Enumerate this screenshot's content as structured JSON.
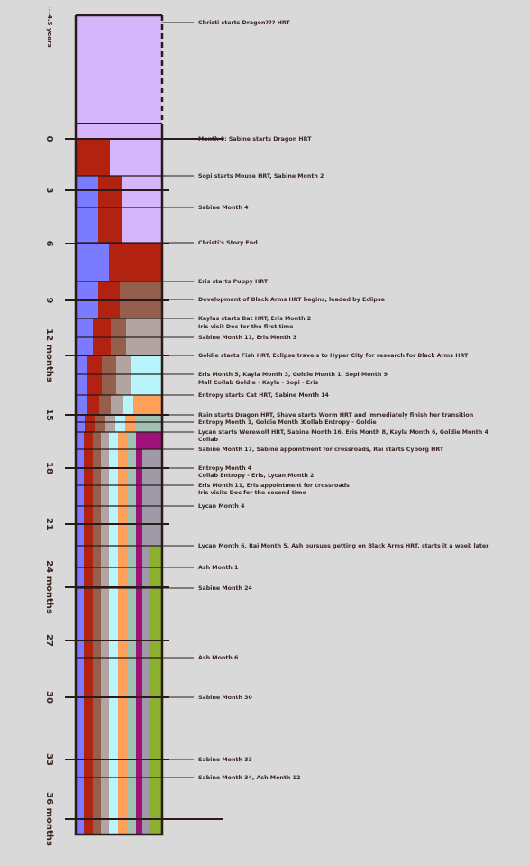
{
  "timeline": {
    "axis_labels": [
      "~-4.5 years",
      "0",
      "3",
      "6",
      "9",
      "12 months",
      "15",
      "18",
      "21",
      "24 months",
      "27",
      "30",
      "33",
      "36 months"
    ],
    "events": [
      "Christi starts Dragon??? HRT",
      "Month 0: Sabine starts Dragon HRT",
      "Sopi starts Mouse HRT, Sabine Month 2",
      "Sabine Month 4",
      "Christi's Story End",
      "Eris starts Puppy HRT",
      "Development of Black Arms HRT begins, leaded by Eclipse",
      "Kaylas starts Bat HRT, Eris Month 2",
      "Iris visit Doc for the first time",
      "Sabine Month 11, Eris Month 3",
      "Goldie starts Fish HRT, Eclipse travels to Hyper City for research  for Black Arms HRT",
      "Eris Month 5, Kayla Month 3, Goldie Month 1, Sopi Month 9",
      "Mall Collab Goldie - Kayla - Sopi - Eris",
      "Entropy starts Cat HRT, Sabine Month 14",
      "Rain starts Dragon HRT, Shave starts Worm HRT and immediately finish her transition",
      "Entropy Month 1, Goldie Month 3",
      "Collab Entropy - Goldie",
      "Lycan starts Werewolf HRT, Sabine Month 16, Eris Month 8, Kayla Month 6, Goldie Month 4",
      "Collab",
      "Sabine Month 17, Sabine appointment for crossroads, Rai starts Cyborg HRT",
      "Entropy Month 4",
      "Collab Entropy - Eris, Lycan Month 2",
      "Eris Month 11, Eris appointment for crossroads",
      "Iris visits Doc for the second time",
      "Lycan Month 4",
      "Lycan Month 6, Rai Month 5, Ash pursues getting on Black Arms HRT, starts it a week later",
      "Ash Month 1",
      "Sabine Month 24",
      "Ash Month 6",
      "Sabine Month 30",
      "Sabine Month 33",
      "Sabine Month 34, Ash Month 12"
    ]
  }
}
